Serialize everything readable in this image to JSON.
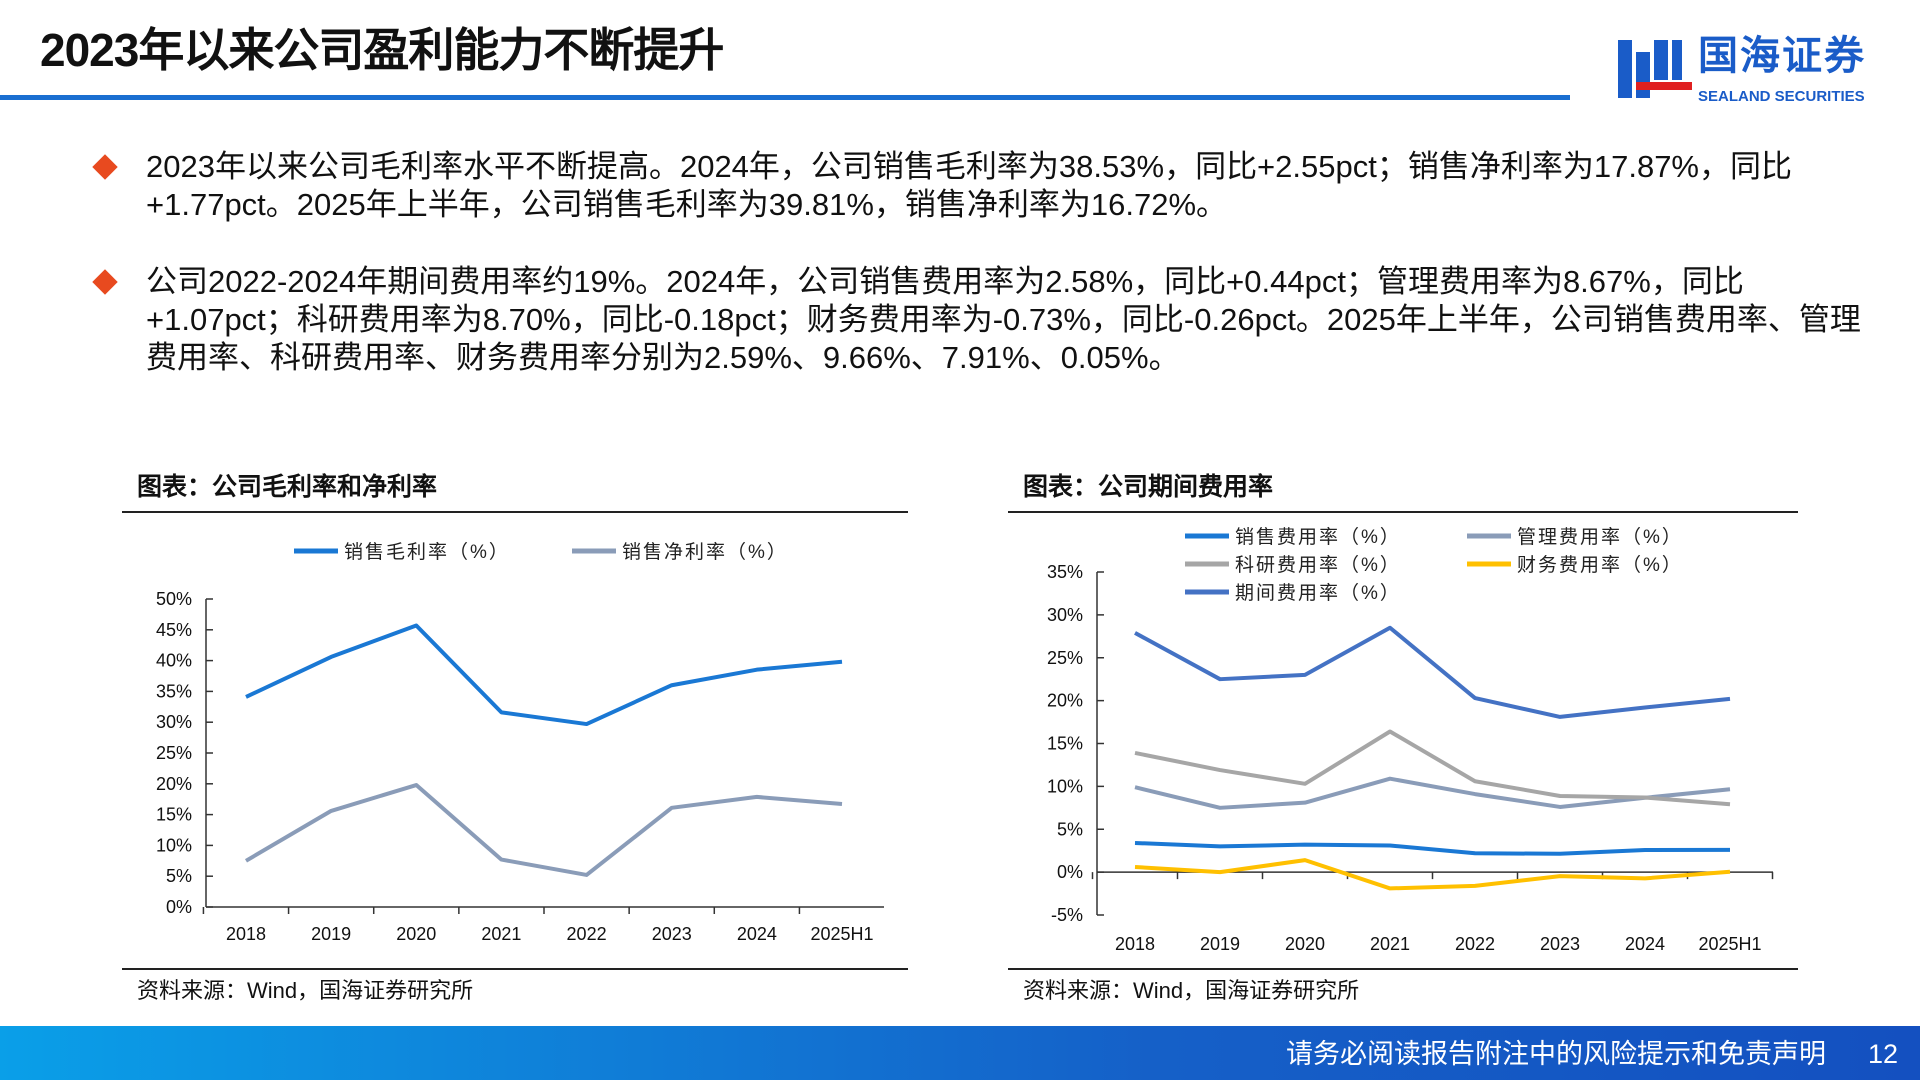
{
  "header": {
    "title": "2023年以来公司盈利能力不断提升",
    "logo_cn": "国海证券",
    "logo_en": "SEALAND SECURITIES",
    "accent": "#1a6fd1"
  },
  "bullets": [
    "2023年以来公司毛利率水平不断提高。2024年，公司销售毛利率为38.53%，同比+2.55pct；销售净利率为17.87%，同比+1.77pct。2025年上半年，公司销售毛利率为39.81%，销售净利率为16.72%。",
    "公司2022-2024年期间费用率约19%。2024年，公司销售费用率为2.58%，同比+0.44pct；管理费用率为8.67%，同比+1.07pct；科研费用率为8.70%，同比-0.18pct；财务费用率为-0.73%，同比-0.26pct。2025年上半年，公司销售费用率、管理费用率、科研费用率、财务费用率分别为2.59%、9.66%、7.91%、0.05%。"
  ],
  "chart_data": [
    {
      "type": "line",
      "title": "图表：公司毛利率和净利率",
      "source": "资料来源：Wind，国海证券研究所",
      "categories": [
        "2018",
        "2019",
        "2020",
        "2021",
        "2022",
        "2023",
        "2024",
        "2025H1"
      ],
      "ylim": [
        0,
        50
      ],
      "yticks": [
        "0%",
        "5%",
        "10%",
        "15%",
        "20%",
        "25%",
        "30%",
        "35%",
        "40%",
        "45%",
        "50%"
      ],
      "legend_position": "top",
      "grid": false,
      "series": [
        {
          "name": "销售毛利率（%）",
          "color": "#1a78d4",
          "values": [
            34.1,
            40.6,
            45.7,
            31.6,
            29.7,
            36.0,
            38.53,
            39.81
          ]
        },
        {
          "name": "销售净利率（%）",
          "color": "#8a9cb8",
          "values": [
            7.5,
            15.6,
            19.8,
            7.7,
            5.2,
            16.1,
            17.87,
            16.72
          ]
        }
      ]
    },
    {
      "type": "line",
      "title": "图表：公司期间费用率",
      "source": "资料来源：Wind，国海证券研究所",
      "categories": [
        "2018",
        "2019",
        "2020",
        "2021",
        "2022",
        "2023",
        "2024",
        "2025H1"
      ],
      "ylim": [
        -5,
        35
      ],
      "yticks": [
        "-5%",
        "0%",
        "5%",
        "10%",
        "15%",
        "20%",
        "25%",
        "30%",
        "35%"
      ],
      "legend_position": "top",
      "grid": false,
      "series": [
        {
          "name": "销售费用率（%）",
          "color": "#1a78d4",
          "values": [
            3.4,
            3.0,
            3.2,
            3.1,
            2.2,
            2.14,
            2.58,
            2.59
          ]
        },
        {
          "name": "管理费用率（%）",
          "color": "#8a9cb8",
          "values": [
            9.9,
            7.5,
            8.1,
            10.9,
            9.1,
            7.6,
            8.67,
            9.66
          ]
        },
        {
          "name": "科研费用率（%）",
          "color": "#a6a6a6",
          "values": [
            13.9,
            11.9,
            10.3,
            16.4,
            10.6,
            8.88,
            8.7,
            7.91
          ]
        },
        {
          "name": "财务费用率（%）",
          "color": "#ffc000",
          "values": [
            0.6,
            0.0,
            1.4,
            -1.9,
            -1.6,
            -0.47,
            -0.73,
            0.05
          ]
        },
        {
          "name": "期间费用率（%）",
          "color": "#4472c4",
          "values": [
            27.9,
            22.5,
            23.0,
            28.5,
            20.3,
            18.1,
            19.2,
            20.2
          ]
        }
      ]
    }
  ],
  "footer": {
    "disclaimer": "请务必阅读报告附注中的风险提示和免责声明",
    "page": "12"
  }
}
